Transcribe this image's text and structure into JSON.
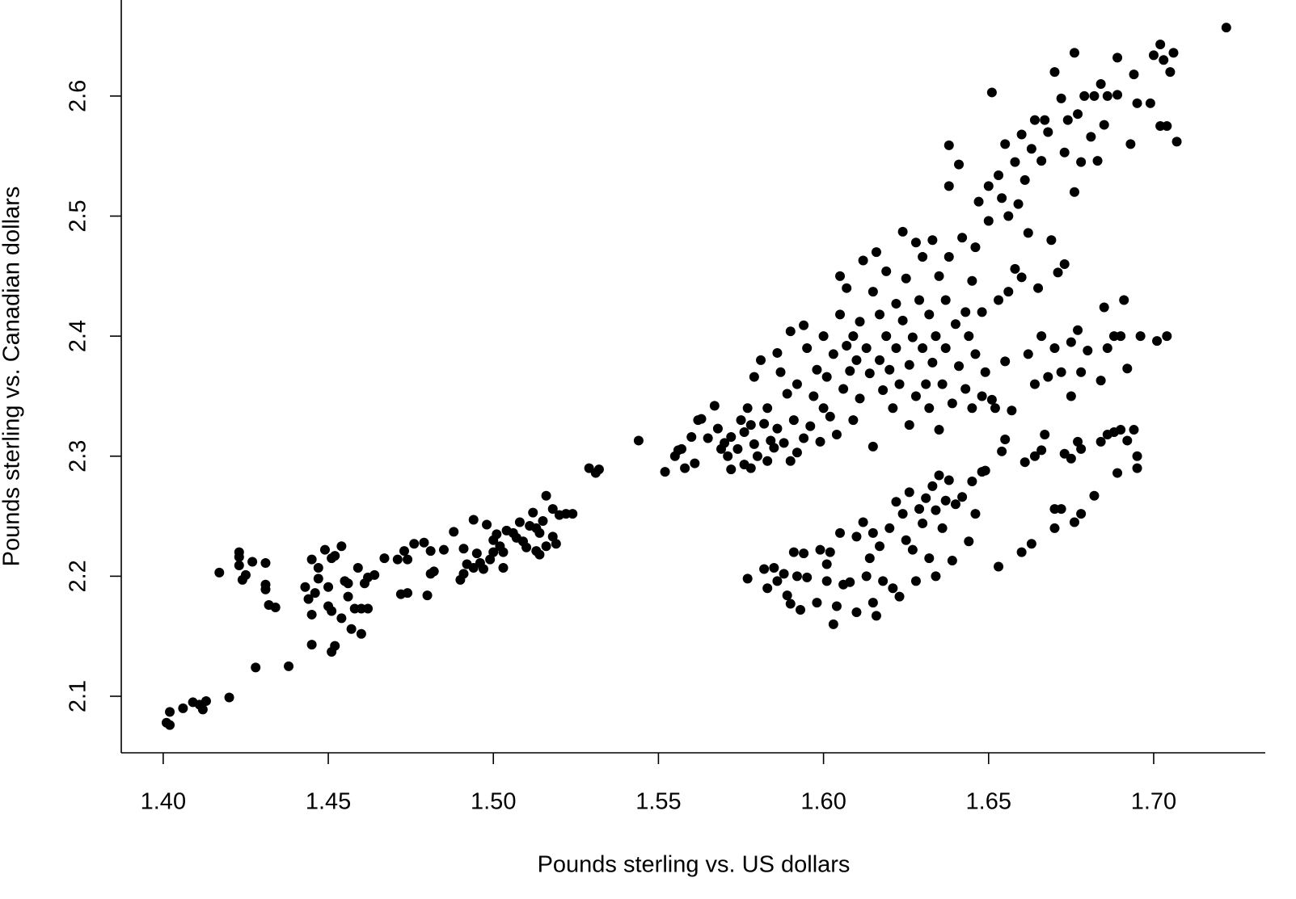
{
  "chart_data": {
    "type": "scatter",
    "x_label": "Pounds sterling vs. US dollars",
    "y_label": "Pounds sterling vs. Canadian dollars",
    "color": "#000000",
    "xlim": [
      1.3873,
      1.7338
    ],
    "ylim": [
      2.0529,
      2.68
    ],
    "xticks": [
      {
        "value": 1.4,
        "label": "1.40"
      },
      {
        "value": 1.45,
        "label": "1.45"
      },
      {
        "value": 1.5,
        "label": "1.50"
      },
      {
        "value": 1.55,
        "label": "1.55"
      },
      {
        "value": 1.6,
        "label": "1.60"
      },
      {
        "value": 1.65,
        "label": "1.65"
      },
      {
        "value": 1.7,
        "label": "1.70"
      }
    ],
    "yticks": [
      2.1,
      2.2,
      2.3,
      2.4,
      2.5,
      2.6
    ],
    "x": [
      1.401,
      1.402,
      1.402,
      1.406,
      1.409,
      1.411,
      1.412,
      1.413,
      1.42,
      1.428,
      1.438,
      1.417,
      1.423,
      1.423,
      1.423,
      1.424,
      1.425,
      1.427,
      1.431,
      1.431,
      1.431,
      1.432,
      1.434,
      1.443,
      1.444,
      1.445,
      1.445,
      1.445,
      1.446,
      1.447,
      1.447,
      1.449,
      1.45,
      1.45,
      1.451,
      1.451,
      1.451,
      1.452,
      1.452,
      1.454,
      1.454,
      1.455,
      1.456,
      1.456,
      1.457,
      1.458,
      1.459,
      1.46,
      1.46,
      1.461,
      1.462,
      1.462,
      1.464,
      1.467,
      1.471,
      1.472,
      1.473,
      1.474,
      1.474,
      1.476,
      1.479,
      1.48,
      1.481,
      1.481,
      1.482,
      1.485,
      1.488,
      1.49,
      1.491,
      1.491,
      1.492,
      1.494,
      1.494,
      1.495,
      1.496,
      1.497,
      1.498,
      1.499,
      1.5,
      1.5,
      1.501,
      1.502,
      1.503,
      1.503,
      1.504,
      1.506,
      1.507,
      1.508,
      1.509,
      1.51,
      1.511,
      1.512,
      1.513,
      1.513,
      1.514,
      1.514,
      1.515,
      1.516,
      1.516,
      1.518,
      1.518,
      1.519,
      1.52,
      1.522,
      1.524,
      1.529,
      1.531,
      1.532,
      1.544,
      1.552,
      1.555,
      1.556,
      1.557,
      1.558,
      1.56,
      1.561,
      1.562,
      1.563,
      1.565,
      1.567,
      1.568,
      1.569,
      1.57,
      1.571,
      1.572,
      1.572,
      1.574,
      1.575,
      1.576,
      1.576,
      1.577,
      1.578,
      1.578,
      1.579,
      1.579,
      1.58,
      1.581,
      1.582,
      1.583,
      1.583,
      1.584,
      1.585,
      1.586,
      1.586,
      1.587,
      1.588,
      1.589,
      1.59,
      1.59,
      1.591,
      1.592,
      1.592,
      1.594,
      1.594,
      1.595,
      1.596,
      1.597,
      1.598,
      1.599,
      1.6,
      1.6,
      1.601,
      1.602,
      1.603,
      1.604,
      1.605,
      1.605,
      1.606,
      1.607,
      1.607,
      1.608,
      1.609,
      1.609,
      1.61,
      1.611,
      1.611,
      1.612,
      1.613,
      1.614,
      1.615,
      1.615,
      1.616,
      1.617,
      1.617,
      1.618,
      1.619,
      1.619,
      1.62,
      1.621,
      1.622,
      1.622,
      1.623,
      1.624,
      1.624,
      1.625,
      1.626,
      1.626,
      1.627,
      1.628,
      1.628,
      1.629,
      1.63,
      1.63,
      1.631,
      1.632,
      1.632,
      1.633,
      1.633,
      1.634,
      1.635,
      1.635,
      1.636,
      1.637,
      1.637,
      1.638,
      1.638,
      1.638,
      1.639,
      1.64,
      1.641,
      1.641,
      1.642,
      1.643,
      1.643,
      1.644,
      1.645,
      1.645,
      1.646,
      1.646,
      1.647,
      1.648,
      1.648,
      1.649,
      1.65,
      1.65,
      1.651,
      1.651,
      1.652,
      1.653,
      1.653,
      1.654,
      1.655,
      1.655,
      1.656,
      1.656,
      1.657,
      1.658,
      1.658,
      1.659,
      1.66,
      1.66,
      1.661,
      1.662,
      1.662,
      1.663,
      1.664,
      1.664,
      1.665,
      1.666,
      1.666,
      1.667,
      1.668,
      1.668,
      1.669,
      1.67,
      1.67,
      1.671,
      1.672,
      1.672,
      1.673,
      1.673,
      1.674,
      1.675,
      1.675,
      1.676,
      1.676,
      1.677,
      1.677,
      1.678,
      1.678,
      1.679,
      1.68,
      1.681,
      1.682,
      1.683,
      1.684,
      1.684,
      1.685,
      1.685,
      1.686,
      1.686,
      1.688,
      1.689,
      1.689,
      1.69,
      1.691,
      1.692,
      1.693,
      1.694,
      1.695,
      1.696,
      1.699,
      1.7,
      1.701,
      1.702,
      1.702,
      1.703,
      1.704,
      1.704,
      1.705,
      1.706,
      1.707,
      1.722,
      1.577,
      1.582,
      1.583,
      1.585,
      1.586,
      1.588,
      1.589,
      1.59,
      1.591,
      1.592,
      1.593,
      1.594,
      1.595,
      1.598,
      1.599,
      1.601,
      1.601,
      1.602,
      1.603,
      1.604,
      1.605,
      1.606,
      1.608,
      1.61,
      1.61,
      1.612,
      1.613,
      1.614,
      1.615,
      1.615,
      1.616,
      1.617,
      1.618,
      1.62,
      1.621,
      1.622,
      1.623,
      1.624,
      1.625,
      1.626,
      1.627,
      1.628,
      1.629,
      1.63,
      1.631,
      1.632,
      1.633,
      1.634,
      1.634,
      1.635,
      1.636,
      1.637,
      1.638,
      1.639,
      1.64,
      1.642,
      1.644,
      1.645,
      1.646,
      1.648,
      1.649,
      1.653,
      1.654,
      1.655,
      1.66,
      1.661,
      1.663,
      1.664,
      1.666,
      1.667,
      1.67,
      1.67,
      1.672,
      1.673,
      1.675,
      1.676,
      1.677,
      1.678,
      1.678,
      1.682,
      1.684,
      1.686,
      1.688,
      1.689,
      1.69,
      1.692,
      1.694,
      1.695,
      1.695
    ],
    "values": [
      2.078,
      2.076,
      2.087,
      2.09,
      2.095,
      2.093,
      2.089,
      2.096,
      2.099,
      2.124,
      2.125,
      2.203,
      2.216,
      2.22,
      2.209,
      2.197,
      2.201,
      2.212,
      2.211,
      2.193,
      2.189,
      2.176,
      2.174,
      2.191,
      2.181,
      2.214,
      2.168,
      2.143,
      2.186,
      2.207,
      2.198,
      2.222,
      2.175,
      2.191,
      2.171,
      2.137,
      2.215,
      2.142,
      2.217,
      2.225,
      2.165,
      2.196,
      2.194,
      2.183,
      2.156,
      2.173,
      2.207,
      2.152,
      2.173,
      2.194,
      2.199,
      2.173,
      2.201,
      2.215,
      2.214,
      2.185,
      2.221,
      2.186,
      2.214,
      2.227,
      2.228,
      2.184,
      2.202,
      2.221,
      2.204,
      2.222,
      2.237,
      2.197,
      2.202,
      2.223,
      2.21,
      2.207,
      2.247,
      2.219,
      2.211,
      2.206,
      2.243,
      2.214,
      2.22,
      2.23,
      2.235,
      2.225,
      2.207,
      2.22,
      2.238,
      2.236,
      2.232,
      2.245,
      2.229,
      2.224,
      2.242,
      2.253,
      2.221,
      2.24,
      2.236,
      2.218,
      2.246,
      2.225,
      2.267,
      2.256,
      2.233,
      2.227,
      2.251,
      2.252,
      2.252,
      2.29,
      2.286,
      2.289,
      2.313,
      2.287,
      2.3,
      2.305,
      2.306,
      2.29,
      2.316,
      2.294,
      2.33,
      2.331,
      2.315,
      2.342,
      2.323,
      2.306,
      2.311,
      2.3,
      2.316,
      2.289,
      2.306,
      2.33,
      2.293,
      2.32,
      2.34,
      2.326,
      2.29,
      2.31,
      2.366,
      2.3,
      2.38,
      2.327,
      2.296,
      2.34,
      2.313,
      2.307,
      2.386,
      2.323,
      2.37,
      2.311,
      2.352,
      2.404,
      2.296,
      2.33,
      2.303,
      2.36,
      2.409,
      2.315,
      2.39,
      2.325,
      2.35,
      2.372,
      2.312,
      2.34,
      2.4,
      2.366,
      2.333,
      2.385,
      2.318,
      2.418,
      2.45,
      2.356,
      2.392,
      2.44,
      2.371,
      2.4,
      2.33,
      2.38,
      2.412,
      2.348,
      2.463,
      2.39,
      2.369,
      2.437,
      2.308,
      2.47,
      2.38,
      2.418,
      2.355,
      2.4,
      2.454,
      2.372,
      2.34,
      2.427,
      2.39,
      2.36,
      2.487,
      2.413,
      2.448,
      2.376,
      2.326,
      2.399,
      2.478,
      2.35,
      2.43,
      2.39,
      2.466,
      2.36,
      2.418,
      2.34,
      2.48,
      2.378,
      2.4,
      2.45,
      2.322,
      2.36,
      2.43,
      2.39,
      2.466,
      2.525,
      2.559,
      2.344,
      2.41,
      2.375,
      2.543,
      2.482,
      2.42,
      2.356,
      2.4,
      2.446,
      2.34,
      2.474,
      2.385,
      2.512,
      2.42,
      2.35,
      2.37,
      2.525,
      2.496,
      2.603,
      2.347,
      2.34,
      2.534,
      2.43,
      2.515,
      2.56,
      2.379,
      2.437,
      2.5,
      2.338,
      2.545,
      2.456,
      2.51,
      2.568,
      2.449,
      2.53,
      2.385,
      2.486,
      2.556,
      2.58,
      2.36,
      2.44,
      2.546,
      2.4,
      2.58,
      2.57,
      2.366,
      2.48,
      2.62,
      2.39,
      2.453,
      2.598,
      2.37,
      2.553,
      2.46,
      2.58,
      2.395,
      2.35,
      2.636,
      2.52,
      2.585,
      2.405,
      2.545,
      2.37,
      2.6,
      2.388,
      2.566,
      2.6,
      2.546,
      2.61,
      2.363,
      2.576,
      2.424,
      2.6,
      2.39,
      2.4,
      2.632,
      2.601,
      2.4,
      2.43,
      2.373,
      2.56,
      2.618,
      2.594,
      2.4,
      2.594,
      2.634,
      2.396,
      2.575,
      2.643,
      2.63,
      2.4,
      2.575,
      2.62,
      2.636,
      2.562,
      2.657,
      2.198,
      2.206,
      2.19,
      2.207,
      2.196,
      2.202,
      2.184,
      2.177,
      2.22,
      2.2,
      2.172,
      2.219,
      2.199,
      2.178,
      2.222,
      2.196,
      2.21,
      2.22,
      2.16,
      2.175,
      2.236,
      2.193,
      2.195,
      2.233,
      2.17,
      2.245,
      2.2,
      2.215,
      2.236,
      2.178,
      2.167,
      2.225,
      2.196,
      2.24,
      2.19,
      2.262,
      2.183,
      2.252,
      2.23,
      2.27,
      2.222,
      2.196,
      2.256,
      2.244,
      2.265,
      2.215,
      2.275,
      2.255,
      2.2,
      2.284,
      2.24,
      2.263,
      2.28,
      2.213,
      2.26,
      2.266,
      2.229,
      2.279,
      2.252,
      2.287,
      2.288,
      2.208,
      2.304,
      2.314,
      2.22,
      2.295,
      2.227,
      2.3,
      2.305,
      2.318,
      2.256,
      2.24,
      2.256,
      2.302,
      2.298,
      2.245,
      2.312,
      2.252,
      2.306,
      2.267,
      2.312,
      2.318,
      2.32,
      2.286,
      2.322,
      2.313,
      2.322,
      2.29,
      2.3
    ]
  }
}
